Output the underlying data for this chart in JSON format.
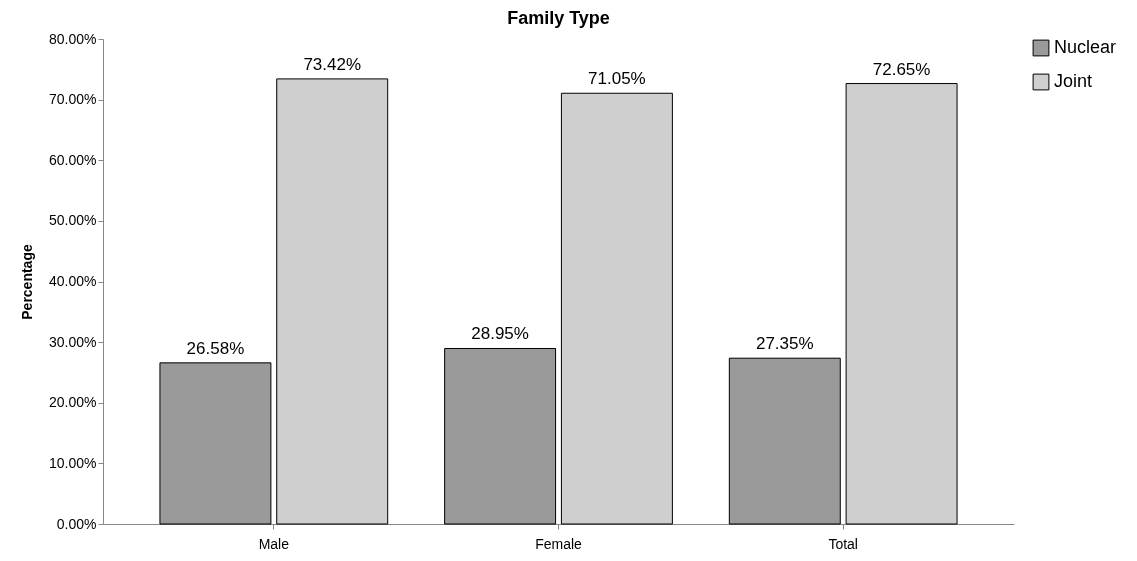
{
  "chart_data": {
    "type": "bar",
    "title": "Family Type",
    "ylabel": "Percentage",
    "categories": [
      "Male",
      "Female",
      "Total"
    ],
    "series": [
      {
        "name": "Nuclear",
        "color": "#9a9a9a",
        "values": [
          26.58,
          28.95,
          27.35
        ],
        "value_labels": [
          "26.58%",
          "28.95%",
          "27.35%"
        ]
      },
      {
        "name": "Joint",
        "color": "#cfcfcf",
        "values": [
          73.42,
          71.05,
          72.65
        ],
        "value_labels": [
          "73.42%",
          "71.05%",
          "72.65%"
        ]
      }
    ],
    "ylim": [
      0,
      80
    ],
    "yticks": [
      {
        "value": 0,
        "label": "0.00%"
      },
      {
        "value": 10,
        "label": "10.00%"
      },
      {
        "value": 20,
        "label": "20.00%"
      },
      {
        "value": 30,
        "label": "30.00%"
      },
      {
        "value": 40,
        "label": "40.00%"
      },
      {
        "value": 50,
        "label": "50.00%"
      },
      {
        "value": 60,
        "label": "60.00%"
      },
      {
        "value": 70,
        "label": "70.00%"
      },
      {
        "value": 80,
        "label": "80.00%"
      }
    ],
    "grid": false,
    "legend": "right"
  }
}
